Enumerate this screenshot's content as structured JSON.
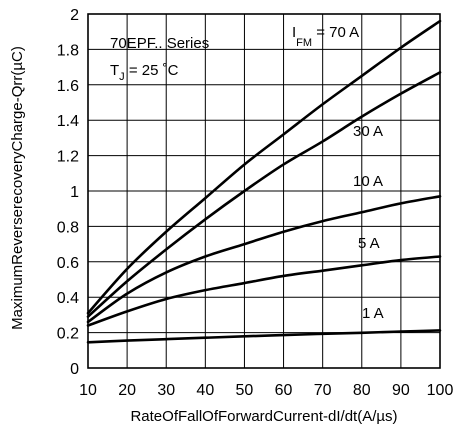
{
  "chart_data": {
    "type": "line",
    "xlabel": "RateOfFallOfForwardCurrent-dI/dt(A/µs)",
    "ylabel": "MaximumReverserecoveryCharge-Qrr(µC)",
    "xlim": [
      10,
      100
    ],
    "ylim": [
      0,
      2
    ],
    "xticks": [
      "10",
      "20",
      "30",
      "40",
      "50",
      "60",
      "70",
      "80",
      "90",
      "100"
    ],
    "yticks": [
      "0",
      "0.2",
      "0.4",
      "0.6",
      "0.8",
      "1",
      "1.2",
      "1.4",
      "1.6",
      "1.8",
      "2"
    ],
    "grid": true,
    "series_title": "70EPF.. Series",
    "condition": {
      "main": "T",
      "sub": "J",
      "rest": " = 25 ˚C"
    },
    "current_label": {
      "main": "I",
      "sub": "FM",
      "rest": " = 70 A"
    },
    "series": [
      {
        "name": "70 A",
        "x": [
          10,
          20,
          30,
          40,
          50,
          60,
          70,
          80,
          90,
          100
        ],
        "y": [
          0.31,
          0.56,
          0.77,
          0.96,
          1.15,
          1.32,
          1.49,
          1.65,
          1.81,
          1.96
        ]
      },
      {
        "name": "30 A",
        "x": [
          10,
          20,
          30,
          40,
          50,
          60,
          70,
          80,
          90,
          100
        ],
        "y": [
          0.29,
          0.49,
          0.67,
          0.84,
          1.0,
          1.15,
          1.28,
          1.42,
          1.55,
          1.67
        ]
      },
      {
        "name": "10 A",
        "x": [
          10,
          20,
          30,
          40,
          50,
          60,
          70,
          80,
          90,
          100
        ],
        "y": [
          0.26,
          0.42,
          0.54,
          0.63,
          0.7,
          0.77,
          0.83,
          0.88,
          0.93,
          0.97
        ]
      },
      {
        "name": "5 A",
        "x": [
          10,
          20,
          30,
          40,
          50,
          60,
          70,
          80,
          90,
          100
        ],
        "y": [
          0.24,
          0.32,
          0.39,
          0.44,
          0.48,
          0.52,
          0.55,
          0.58,
          0.61,
          0.63
        ]
      },
      {
        "name": "1 A",
        "x": [
          10,
          20,
          30,
          40,
          50,
          60,
          70,
          80,
          90,
          100
        ],
        "y": [
          0.145,
          0.155,
          0.163,
          0.171,
          0.179,
          0.186,
          0.193,
          0.199,
          0.206,
          0.212
        ]
      }
    ]
  }
}
